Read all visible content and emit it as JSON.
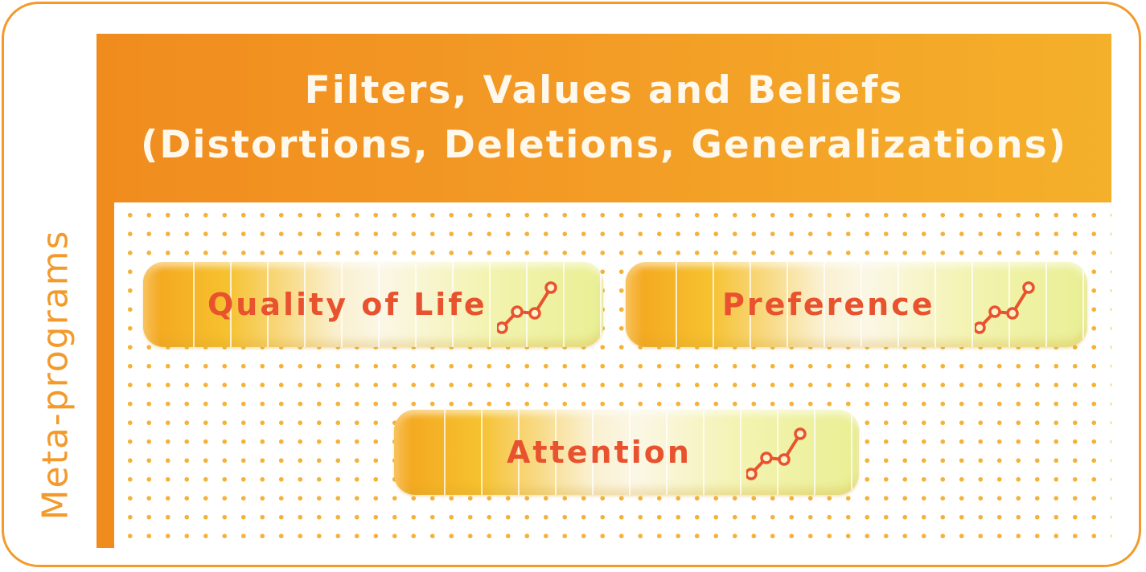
{
  "header": {
    "line1": "Filters, Values and Beliefs",
    "line2": "(Distortions, Deletions, Generalizations)"
  },
  "side_label": "Meta-programs",
  "pills": [
    {
      "label": "Quality of Life",
      "icon": "line-graph-icon"
    },
    {
      "label": "Preference",
      "icon": "line-graph-icon"
    },
    {
      "label": "Attention",
      "icon": "line-graph-icon"
    }
  ],
  "colors": {
    "accent": "#f08c1e",
    "border": "#f39a2b",
    "dot": "#f5b236",
    "pill_text": "#e9522e",
    "header_text": "#fff8ec"
  }
}
